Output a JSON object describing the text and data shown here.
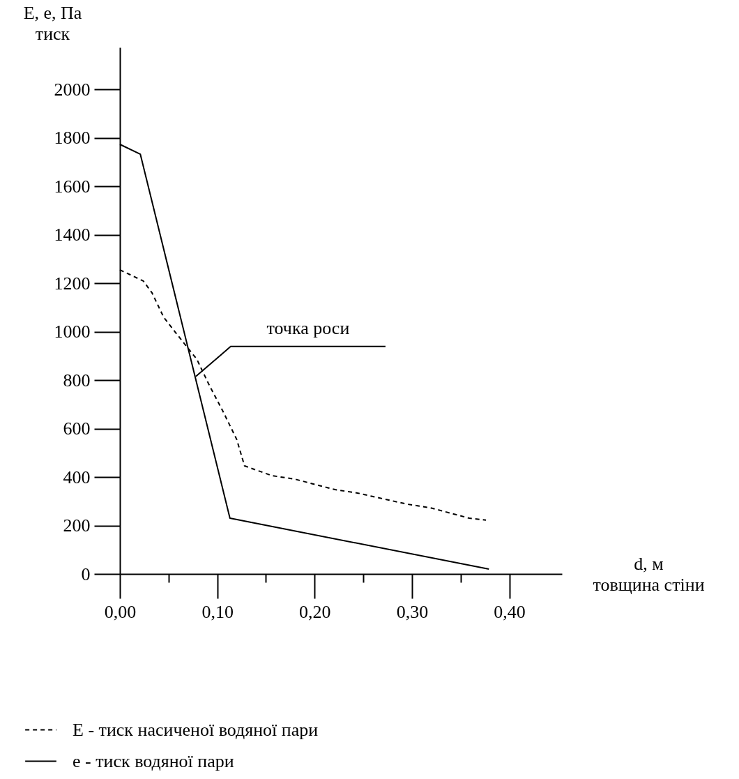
{
  "chart_data": {
    "type": "line",
    "xlabel": "d, м\nтовщина стіни",
    "ylabel": "E, e, Па\nтиск",
    "xlim": [
      0,
      0.454
    ],
    "ylim": [
      0,
      2173
    ],
    "xticks": [
      {
        "value": 0,
        "label": "0,00"
      },
      {
        "value": 0.05,
        "label": null
      },
      {
        "value": 0.1,
        "label": "0,10"
      },
      {
        "value": 0.15,
        "label": null
      },
      {
        "value": 0.2,
        "label": "0,20"
      },
      {
        "value": 0.25,
        "label": null
      },
      {
        "value": 0.3,
        "label": "0,30"
      },
      {
        "value": 0.35,
        "label": null
      },
      {
        "value": 0.4,
        "label": "0,40"
      }
    ],
    "yticks": [
      0,
      200,
      400,
      600,
      800,
      1000,
      1200,
      1400,
      1600,
      1800,
      2000
    ],
    "grid": false,
    "legend": "bottom",
    "marker": "none",
    "annotations": [
      {
        "text": "точка роси",
        "x": 0.078,
        "y": 815
      }
    ],
    "series": [
      {
        "name": "E - тиск насиченої водяної пари",
        "color": "#000000",
        "line_style": "dashed",
        "x": [
          0,
          0.024,
          0.033,
          0.045,
          0.059,
          0.079,
          0.092,
          0.106,
          0.12,
          0.128,
          0.156,
          0.18,
          0.221,
          0.244,
          0.295,
          0.319,
          0.359,
          0.376
        ],
        "values": [
          1255,
          1209,
          1160,
          1059,
          987,
          886,
          777,
          670,
          555,
          446,
          406,
          391,
          348,
          334,
          288,
          273,
          230,
          222
        ]
      },
      {
        "name": "e - тиск водяної пари",
        "color": "#000000",
        "line_style": "solid",
        "x": [
          0,
          0.021,
          0.113,
          0.379
        ],
        "values": [
          1773,
          1732,
          230,
          20
        ]
      }
    ]
  }
}
